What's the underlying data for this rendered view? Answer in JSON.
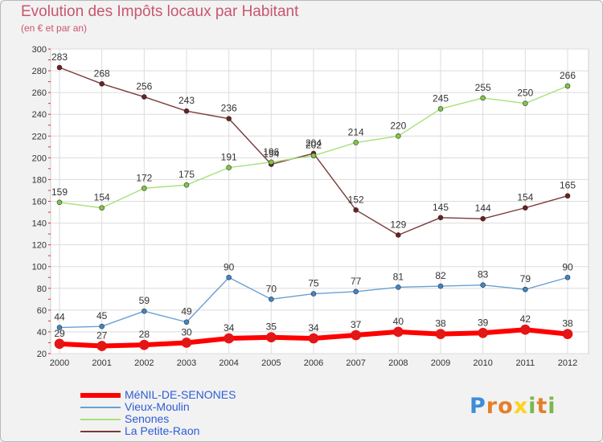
{
  "title": "Evolution des Impôts locaux par Habitant",
  "subtitle": "(en € et par an)",
  "logo": {
    "text": "Proxiti",
    "letters": [
      "P",
      "r",
      "o",
      "x",
      "i",
      "t",
      "i"
    ],
    "colors": [
      "#3c8fd6",
      "#e47f2a",
      "#e47f2a",
      "#ffd21c",
      "#79b84a",
      "#e47f2a",
      "#79b84a"
    ]
  },
  "chart_data": {
    "type": "line",
    "x": [
      "2000",
      "2001",
      "2002",
      "2003",
      "2004",
      "2005",
      "2006",
      "2007",
      "2008",
      "2009",
      "2010",
      "2011",
      "2012"
    ],
    "ylim": [
      20,
      300
    ],
    "yticks": [
      20,
      40,
      60,
      80,
      100,
      120,
      140,
      160,
      180,
      200,
      220,
      240,
      260,
      280,
      300
    ],
    "grid": true,
    "legend_position": "bottom-left",
    "series": [
      {
        "name": "MéNIL-DE-SENONES",
        "color": "#ff0000",
        "marker": "#e01818",
        "width": 6,
        "labels_position": "above",
        "values": [
          29,
          27,
          28,
          30,
          34,
          35,
          34,
          37,
          40,
          38,
          39,
          42,
          38
        ]
      },
      {
        "name": "Vieux-Moulin",
        "color": "#6a9fd4",
        "marker": "#3f86c8",
        "width": 1.4,
        "labels_position": "above",
        "values": [
          44,
          45,
          59,
          49,
          90,
          70,
          75,
          77,
          81,
          82,
          83,
          79,
          90
        ]
      },
      {
        "name": "Senones",
        "color": "#a8e07a",
        "marker": "#7cc845",
        "width": 1.4,
        "labels_position": "above",
        "values": [
          159,
          154,
          172,
          175,
          191,
          196,
          202,
          214,
          220,
          245,
          255,
          250,
          266
        ]
      },
      {
        "name": "La Petite-Raon",
        "color": "#7a3a3a",
        "marker": "#6e1f1f",
        "width": 1.4,
        "labels_position": "above",
        "values": [
          283,
          268,
          256,
          243,
          236,
          194,
          204,
          152,
          129,
          145,
          144,
          154,
          165
        ]
      }
    ]
  }
}
